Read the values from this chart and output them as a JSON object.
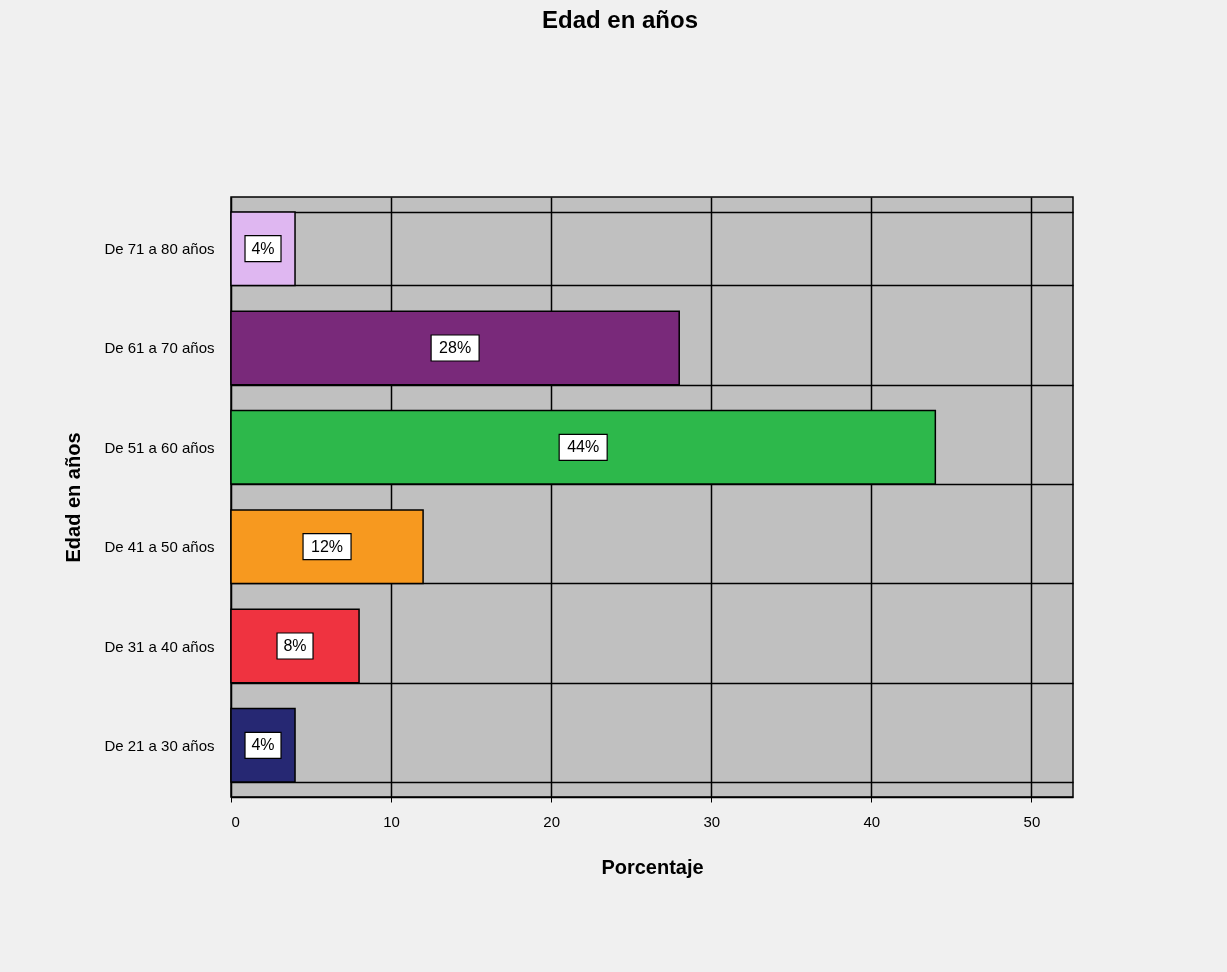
{
  "chart_data": {
    "type": "bar",
    "orientation": "horizontal",
    "title": "Edad en años",
    "xlabel": "Porcentaje",
    "ylabel": "Edad en años",
    "categories": [
      "De 71 a 80 años",
      "De 61 a 70 años",
      "De 51 a 60 años",
      "De 41 a 50 años",
      "De 31 a 40 años",
      "De 21 a 30 años"
    ],
    "values": [
      4,
      28,
      44,
      12,
      8,
      4
    ],
    "colors": [
      "#dfb7f1",
      "#79297a",
      "#2db84b",
      "#f7991f",
      "#ef3340",
      "#262873"
    ],
    "value_labels": [
      "4%",
      "28%",
      "44%",
      "12%",
      "8%",
      "4%"
    ],
    "xlim": [
      0,
      52.6
    ],
    "xticks": [
      0,
      10,
      20,
      30,
      40,
      50
    ],
    "grid": true
  }
}
